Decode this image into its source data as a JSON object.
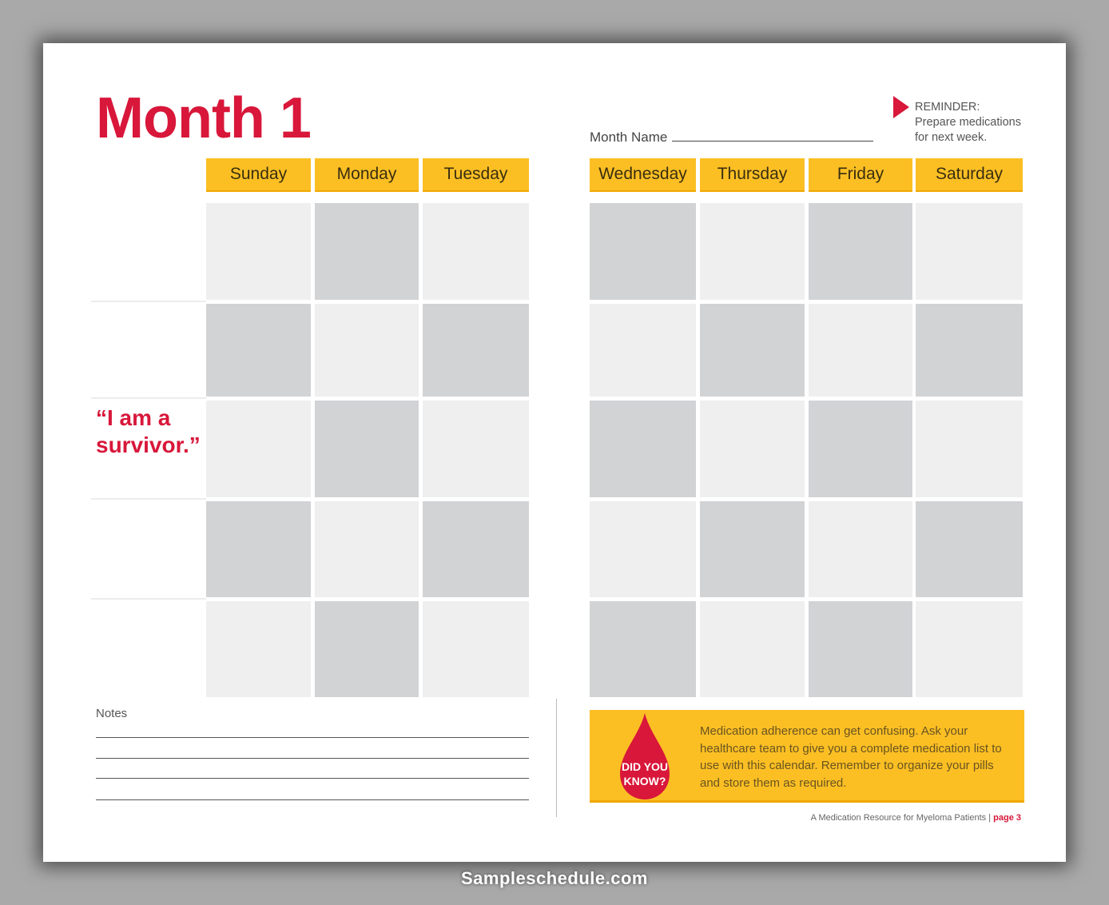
{
  "title": "Month 1",
  "month_name_label": "Month Name",
  "reminder": {
    "heading": "REMINDER:",
    "line1": "Prepare medications",
    "line2": "for next week."
  },
  "days": [
    "Sunday",
    "Monday",
    "Tuesday",
    "Wednesday",
    "Thursday",
    "Friday",
    "Saturday"
  ],
  "quote": {
    "line1": "“I am a",
    "line2": "survivor.”"
  },
  "notes_label": "Notes",
  "did_you_know": {
    "badge_line1": "DID YOU",
    "badge_line2": "KNOW?",
    "text": "Medication adherence can get confusing. Ask your healthcare team to give you a complete medication list to use with this calendar. Remember to organize your pills and store them as required."
  },
  "footer": {
    "text": "A Medication Resource for Myeloma Patients",
    "separator": "|",
    "page": "page 3"
  },
  "watermark": "Sampleschedule.com",
  "colors": {
    "accent_red": "#d8173a",
    "header_yellow": "#fbbf24",
    "cell_light": "#efefef",
    "cell_dark": "#d2d3d5"
  }
}
